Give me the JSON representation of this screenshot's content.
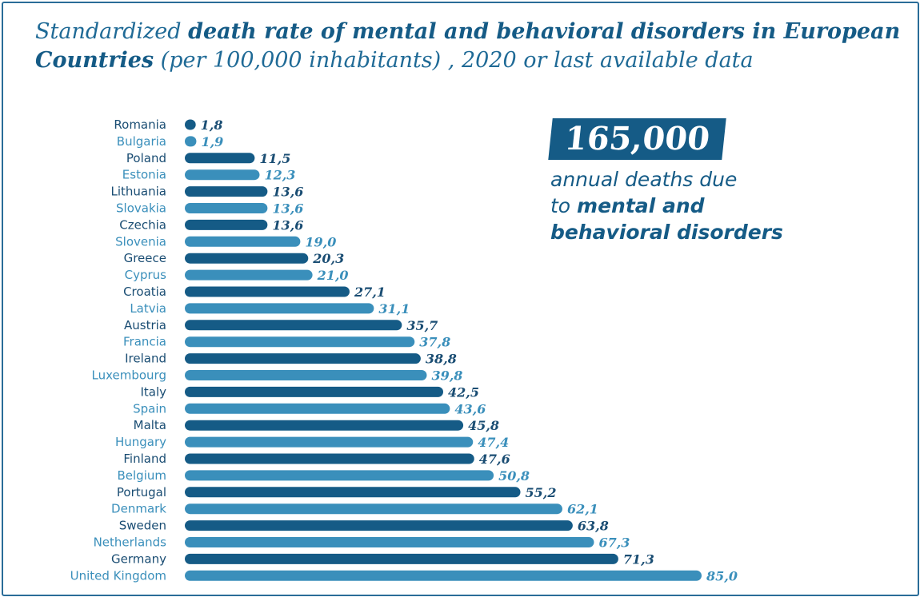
{
  "title": {
    "part1": "Standardized ",
    "part2_bold": "death rate of mental and behavioral disorders in European Countries",
    "part3": " (per 100,000 inhabitants) , 2020 or last available data"
  },
  "callout": {
    "number": "165,000",
    "line1": "annual deaths due",
    "line2_prefix": "to ",
    "line2_bold": "mental and",
    "line3_bold": "behavioral disorders"
  },
  "colors": {
    "dark": "#155b86",
    "light": "#3a8fbb",
    "frame": "#2a6c98"
  },
  "chart_data": {
    "type": "bar",
    "orientation": "horizontal",
    "categories": [
      "Romania",
      "Bulgaria",
      "Poland",
      "Estonia",
      "Lithuania",
      "Slovakia",
      "Czechia",
      "Slovenia",
      "Greece",
      "Cyprus",
      "Croatia",
      "Latvia",
      "Austria",
      "Francia",
      "Ireland",
      "Luxembourg",
      "Italy",
      "Spain",
      "Malta",
      "Hungary",
      "Finland",
      "Belgium",
      "Portugal",
      "Denmark",
      "Sweden",
      "Netherlands",
      "Germany",
      "United Kingdom"
    ],
    "values": [
      1.8,
      1.9,
      11.5,
      12.3,
      13.6,
      13.6,
      13.6,
      19.0,
      20.3,
      21.0,
      27.1,
      31.1,
      35.7,
      37.8,
      38.8,
      39.8,
      42.5,
      43.6,
      45.8,
      47.4,
      47.6,
      50.8,
      55.2,
      62.1,
      63.8,
      67.3,
      71.3,
      85.0
    ],
    "value_labels": [
      "1,8",
      "1,9",
      "11,5",
      "12,3",
      "13,6",
      "13,6",
      "13,6",
      "19,0",
      "20,3",
      "21,0",
      "27,1",
      "31,1",
      "35,7",
      "37,8",
      "38,8",
      "39,8",
      "42,5",
      "43,6",
      "45,8",
      "47,4",
      "47,6",
      "50,8",
      "55,2",
      "62,1",
      "63,8",
      "67,3",
      "71,3",
      "85,0"
    ],
    "title": "Standardized death rate of mental and behavioral disorders in European Countries (per 100,000 inhabitants) , 2020 or last available data",
    "xlabel": "",
    "ylabel": "",
    "xlim": [
      0,
      85
    ],
    "grid": false,
    "legend": "none",
    "bar_colors": "alternating dark/light"
  }
}
